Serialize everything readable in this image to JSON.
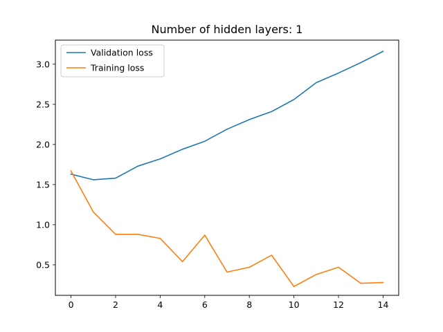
{
  "chart_data": {
    "type": "line",
    "title": "Number of hidden layers: 1",
    "xlabel": "",
    "ylabel": "",
    "xlim": [
      -0.7,
      14.7
    ],
    "ylim": [
      0.12,
      3.3
    ],
    "xticks": [
      0,
      2,
      4,
      6,
      8,
      10,
      12,
      14
    ],
    "yticks": [
      0.5,
      1.0,
      1.5,
      2.0,
      2.5,
      3.0
    ],
    "xtick_labels": [
      "0",
      "2",
      "4",
      "6",
      "8",
      "10",
      "12",
      "14"
    ],
    "ytick_labels": [
      "0.5",
      "1.0",
      "1.5",
      "2.0",
      "2.5",
      "3.0"
    ],
    "grid": false,
    "legend_position": "top-left",
    "x": [
      0,
      1,
      2,
      3,
      4,
      5,
      6,
      7,
      8,
      9,
      10,
      11,
      12,
      13,
      14
    ],
    "series": [
      {
        "name": "Validation loss",
        "color": "#1f77b4",
        "values": [
          1.63,
          1.56,
          1.58,
          1.73,
          1.82,
          1.94,
          2.04,
          2.19,
          2.31,
          2.41,
          2.56,
          2.77,
          2.89,
          3.02,
          3.16
        ]
      },
      {
        "name": "Training loss",
        "color": "#ff7f0e",
        "values": [
          1.67,
          1.16,
          0.88,
          0.88,
          0.83,
          0.54,
          0.87,
          0.41,
          0.47,
          0.62,
          0.23,
          0.38,
          0.47,
          0.27,
          0.28
        ]
      }
    ]
  }
}
